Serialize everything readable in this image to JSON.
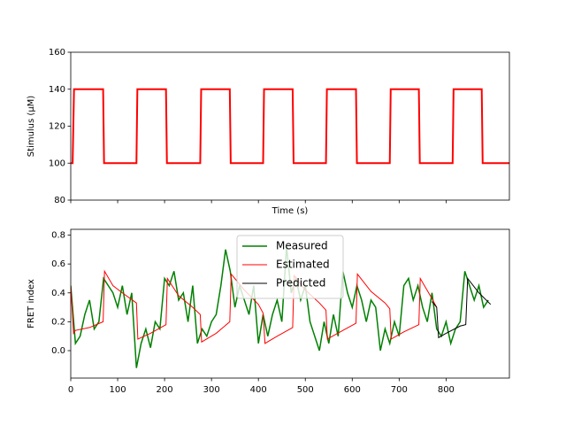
{
  "chart_data": [
    {
      "type": "line",
      "ylabel": "Stimulus (μM)",
      "xlabel": "Time (s)",
      "xlim": [
        0,
        935
      ],
      "ylim": [
        80,
        160
      ],
      "yticks": [
        80,
        100,
        120,
        140,
        160
      ],
      "series": [
        {
          "color": "#ff0000",
          "x": [
            0,
            4,
            7,
            69,
            71,
            140,
            142,
            203,
            205,
            276,
            278,
            339,
            341,
            410,
            412,
            473,
            475,
            544,
            546,
            608,
            610,
            680,
            682,
            742,
            744,
            814,
            816,
            876,
            878,
            935
          ],
          "values": [
            100,
            100,
            140,
            140,
            100,
            100,
            140,
            140,
            100,
            100,
            140,
            140,
            100,
            100,
            140,
            140,
            100,
            100,
            140,
            140,
            100,
            100,
            140,
            140,
            100,
            100,
            140,
            140,
            100,
            100
          ]
        }
      ]
    },
    {
      "type": "line",
      "ylabel": "FRET index",
      "legend": "upper center",
      "xlim": [
        0,
        935
      ],
      "ylim": [
        -0.19,
        0.84
      ],
      "xticks": [
        0,
        100,
        200,
        300,
        400,
        500,
        600,
        700,
        800
      ],
      "yticks": [
        {
          "value": 0,
          "label": "0.0"
        },
        0.2,
        0.4,
        0.6,
        0.8
      ],
      "series": [
        {
          "name": "Measured",
          "color": "#008000",
          "width": 1.5,
          "x": [
            0,
            10,
            20,
            30,
            40,
            50,
            60,
            70,
            80,
            90,
            100,
            110,
            120,
            130,
            140,
            150,
            160,
            170,
            180,
            190,
            200,
            210,
            220,
            230,
            240,
            250,
            260,
            270,
            280,
            290,
            300,
            310,
            320,
            330,
            340,
            350,
            360,
            370,
            380,
            390,
            400,
            410,
            420,
            430,
            440,
            450,
            460,
            470,
            480,
            490,
            500,
            510,
            520,
            530,
            540,
            550,
            560,
            570,
            580,
            590,
            600,
            610,
            620,
            630,
            640,
            650,
            660,
            670,
            680,
            690,
            700,
            710,
            720,
            730,
            740,
            750,
            760,
            770,
            780,
            790,
            800,
            810,
            820,
            830,
            840,
            850,
            860,
            870,
            880,
            890
          ],
          "values": [
            0.45,
            0.05,
            0.1,
            0.25,
            0.35,
            0.15,
            0.2,
            0.5,
            0.45,
            0.4,
            0.3,
            0.45,
            0.25,
            0.4,
            -0.12,
            0.05,
            0.15,
            0.02,
            0.2,
            0.15,
            0.5,
            0.45,
            0.55,
            0.35,
            0.4,
            0.2,
            0.45,
            0.05,
            0.15,
            0.1,
            0.2,
            0.25,
            0.45,
            0.7,
            0.55,
            0.3,
            0.45,
            0.35,
            0.25,
            0.45,
            0.05,
            0.25,
            0.1,
            0.25,
            0.35,
            0.2,
            0.72,
            0.4,
            0.5,
            0.35,
            0.45,
            0.2,
            0.1,
            0.0,
            0.2,
            0.05,
            0.25,
            0.1,
            0.55,
            0.4,
            0.3,
            0.45,
            0.35,
            0.2,
            0.35,
            0.3,
            0.0,
            0.15,
            0.05,
            0.2,
            0.1,
            0.45,
            0.5,
            0.35,
            0.45,
            0.3,
            0.2,
            0.4,
            0.15,
            0.1,
            0.2,
            0.05,
            0.15,
            0.2,
            0.55,
            0.45,
            0.35,
            0.45,
            0.3,
            0.35
          ]
        },
        {
          "name": "Estimated",
          "color": "#ff0000",
          "width": 1,
          "x": [
            0,
            6,
            10,
            40,
            69,
            72,
            90,
            110,
            140,
            143,
            170,
            203,
            206,
            230,
            260,
            276,
            279,
            310,
            339,
            342,
            370,
            400,
            410,
            414,
            440,
            473,
            476,
            500,
            530,
            544,
            547,
            580,
            608,
            611,
            640,
            670,
            680,
            683,
            710,
            742,
            745,
            770,
            780
          ],
          "values": [
            0.45,
            0.12,
            0.14,
            0.16,
            0.2,
            0.55,
            0.45,
            0.4,
            0.33,
            0.08,
            0.12,
            0.18,
            0.5,
            0.38,
            0.3,
            0.25,
            0.06,
            0.12,
            0.2,
            0.53,
            0.42,
            0.32,
            0.26,
            0.05,
            0.1,
            0.16,
            0.52,
            0.42,
            0.33,
            0.28,
            0.08,
            0.14,
            0.19,
            0.53,
            0.41,
            0.33,
            0.29,
            0.08,
            0.13,
            0.18,
            0.5,
            0.36,
            0.3
          ]
        },
        {
          "name": "Predicted",
          "color": "#000000",
          "width": 1,
          "x": [
            770,
            780,
            784,
            800,
            830,
            842,
            846,
            870,
            895
          ],
          "values": [
            0.34,
            0.3,
            0.09,
            0.12,
            0.17,
            0.18,
            0.5,
            0.4,
            0.32
          ]
        }
      ]
    }
  ]
}
